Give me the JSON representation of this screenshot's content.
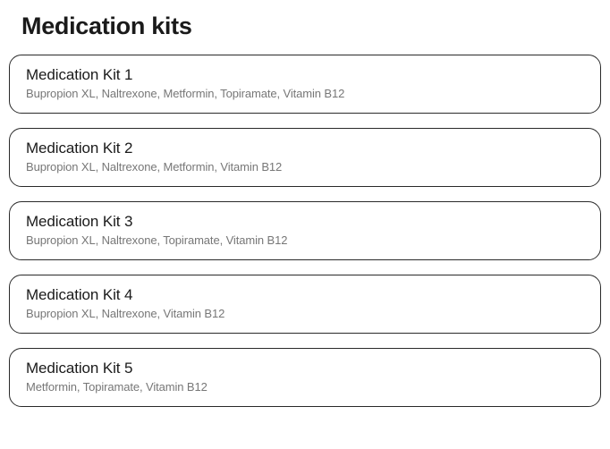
{
  "title": "Medication kits",
  "kits": [
    {
      "name": "Medication Kit 1",
      "medications": "Bupropion XL, Naltrexone, Metformin, Topiramate, Vitamin B12"
    },
    {
      "name": "Medication Kit 2",
      "medications": "Bupropion XL, Naltrexone, Metformin, Vitamin B12"
    },
    {
      "name": "Medication Kit 3",
      "medications": "Bupropion XL, Naltrexone, Topiramate, Vitamin B12"
    },
    {
      "name": "Medication Kit 4",
      "medications": "Bupropion XL, Naltrexone, Vitamin B12"
    },
    {
      "name": "Medication Kit 5",
      "medications": "Metformin, Topiramate, Vitamin B12"
    }
  ],
  "colors": {
    "text_primary": "#1a1a1a",
    "text_secondary": "#777777",
    "border": "#2a2a2a",
    "background": "#ffffff"
  }
}
